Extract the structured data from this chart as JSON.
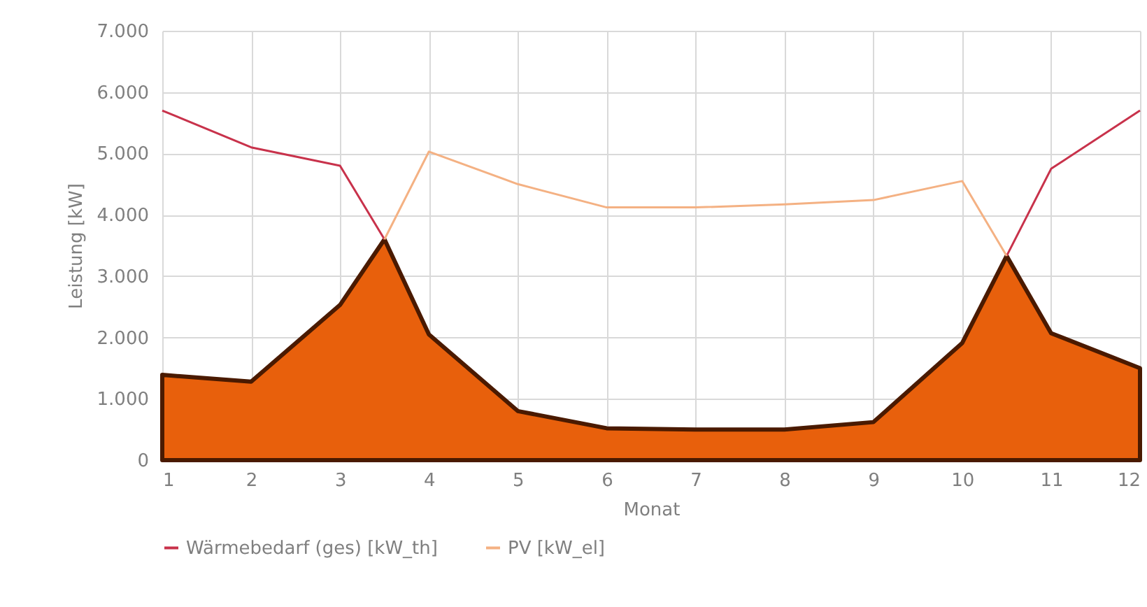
{
  "chart_data": {
    "type": "line",
    "xlabel": "Monat",
    "ylabel": "Leistung [kW]",
    "x": [
      1,
      2,
      3,
      3.5,
      4,
      5,
      6,
      7,
      8,
      9,
      10,
      10.5,
      11,
      12
    ],
    "series": [
      {
        "type": "area",
        "color": "#e8600c",
        "values": [
          1390,
          1280,
          2530,
          3600,
          2050,
          800,
          520,
          500,
          500,
          620,
          1910,
          3330,
          2070,
          1500
        ]
      },
      {
        "name": "Wärmebedarf (ges) [kW_th]",
        "color": "#c8324b",
        "values": [
          5700,
          5100,
          4800,
          3600,
          null,
          null,
          null,
          null,
          null,
          null,
          null,
          3330,
          4750,
          5700
        ]
      },
      {
        "name": "PV [kW_el]",
        "color": "#f4b183",
        "values": [
          null,
          null,
          null,
          3600,
          5030,
          4500,
          4120,
          4120,
          4170,
          4240,
          4550,
          3330,
          null,
          null
        ]
      }
    ],
    "xlim": [
      1,
      12
    ],
    "xticks": [
      1,
      2,
      3,
      4,
      5,
      6,
      7,
      8,
      9,
      10,
      11,
      12
    ],
    "ylim": [
      0,
      7000
    ],
    "yticks": [
      0,
      {
        "value": 1000,
        "label": "1.000"
      },
      {
        "value": 2000,
        "label": "2.000"
      },
      {
        "value": 3000,
        "label": "3.000"
      },
      {
        "value": 4000,
        "label": "4.000"
      },
      {
        "value": 5000,
        "label": "5.000"
      },
      {
        "value": 6000,
        "label": "6.000"
      },
      {
        "value": 7000,
        "label": "7.000"
      }
    ],
    "grid": true,
    "legend": "bottom"
  }
}
